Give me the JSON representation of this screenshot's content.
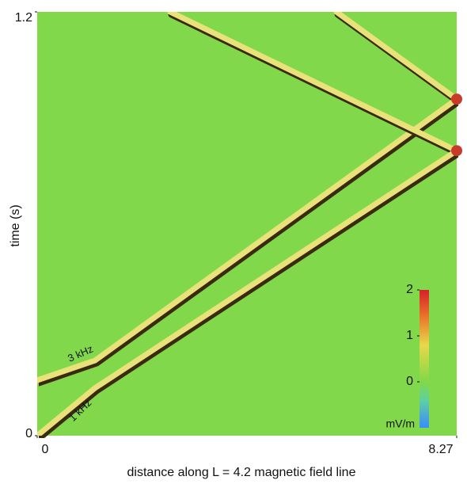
{
  "chart_data": {
    "type": "ray",
    "xlabel": "distance along L = 4.2 magnetic field line",
    "ylabel": "time (s)",
    "xlim": [
      0,
      8.27
    ],
    "ylim": [
      0,
      1.2
    ],
    "xticks": [
      0,
      8.27
    ],
    "yticks": [
      0,
      1.2
    ],
    "background": "#80d84a",
    "series": [
      {
        "name": "3 kHz",
        "color": "#e9e27a",
        "x": [
          0,
          1.14,
          8.27,
          5.9
        ],
        "y": [
          0.157,
          0.213,
          0.953,
          1.2
        ]
      },
      {
        "name": "1 kHz",
        "color": "#e9e27a",
        "x": [
          0,
          1.14,
          8.27,
          2.62
        ],
        "y": [
          0,
          0.135,
          0.807,
          1.2
        ]
      }
    ],
    "colorbar": {
      "label": "mV/m",
      "clim": [
        -1,
        2
      ],
      "ticks": [
        0,
        1,
        2
      ]
    }
  }
}
